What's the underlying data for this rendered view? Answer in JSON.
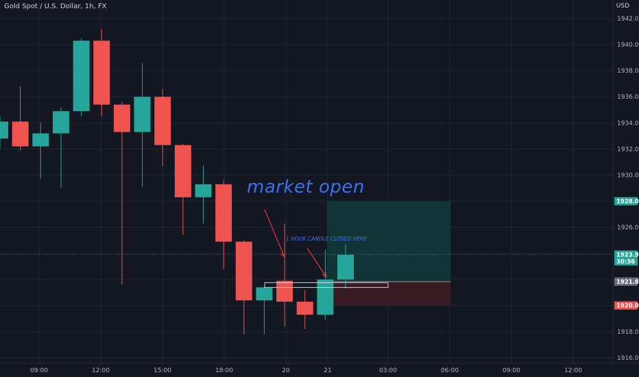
{
  "header": {
    "title": "Gold Spot / U.S. Dollar, 1h, FX",
    "currency": "USD"
  },
  "annotations": {
    "market_open": "market open",
    "candle_note": "1 HOUR CANDLE CLOSED HERE"
  },
  "colors": {
    "background": "#131722",
    "grid": "#1f2433",
    "up": "#26a69a",
    "down": "#ef5350",
    "annotation": "#3d6ff5",
    "arrow": "#e53935",
    "target_zone": "#123b3b",
    "stop_zone": "#3d1c22"
  },
  "chart_data": {
    "type": "candlestick",
    "title": "Gold Spot / U.S. Dollar, 1h, FX",
    "ylim": [
      1915.5,
      1943
    ],
    "y_ticks": [
      "1916.00",
      "1918.00",
      "1920.00",
      "1922.00",
      "1924.00",
      "1926.00",
      "1928.00",
      "1930.00",
      "1932.00",
      "1934.00",
      "1936.00",
      "1938.00",
      "1940.00",
      "1942.00"
    ],
    "x_tick_labels": [
      "09:00",
      "12:00",
      "15:00",
      "18:00",
      "20",
      "21",
      "03:00",
      "06:00",
      "09:00",
      "12:00"
    ],
    "candles": [
      {
        "o": 1932.8,
        "h": 1934.5,
        "l": 1932.0,
        "c": 1934.1
      },
      {
        "o": 1934.1,
        "h": 1936.8,
        "l": 1931.9,
        "c": 1932.2
      },
      {
        "o": 1932.2,
        "h": 1934.0,
        "l": 1929.7,
        "c": 1933.2
      },
      {
        "o": 1933.2,
        "h": 1935.2,
        "l": 1929.0,
        "c": 1934.9
      },
      {
        "o": 1934.9,
        "h": 1940.5,
        "l": 1934.5,
        "c": 1940.3
      },
      {
        "o": 1940.3,
        "h": 1941.2,
        "l": 1934.5,
        "c": 1935.4
      },
      {
        "o": 1935.4,
        "h": 1935.6,
        "l": 1921.6,
        "c": 1933.3
      },
      {
        "o": 1933.3,
        "h": 1938.6,
        "l": 1929.1,
        "c": 1936.0
      },
      {
        "o": 1936.0,
        "h": 1936.6,
        "l": 1930.7,
        "c": 1932.3
      },
      {
        "o": 1932.3,
        "h": 1932.4,
        "l": 1925.4,
        "c": 1928.3
      },
      {
        "o": 1928.3,
        "h": 1930.7,
        "l": 1926.3,
        "c": 1929.3
      },
      {
        "o": 1929.3,
        "h": 1929.6,
        "l": 1922.8,
        "c": 1924.9
      },
      {
        "o": 1924.9,
        "h": 1925.0,
        "l": 1917.8,
        "c": 1920.4
      },
      {
        "o": 1920.4,
        "h": 1921.4,
        "l": 1917.8,
        "c": 1921.4
      },
      {
        "o": 1921.9,
        "h": 1926.3,
        "l": 1918.4,
        "c": 1920.3
      },
      {
        "o": 1920.3,
        "h": 1921.2,
        "l": 1918.2,
        "c": 1919.3
      },
      {
        "o": 1919.3,
        "h": 1924.3,
        "l": 1918.9,
        "c": 1922.0
      },
      {
        "o": 1922.0,
        "h": 1924.7,
        "l": 1921.3,
        "c": 1923.9
      }
    ],
    "levels": {
      "target": {
        "value": 1928.0,
        "label": "1928.00"
      },
      "current": {
        "value": 1923.91,
        "label": "1923.91",
        "countdown": "30:36"
      },
      "entry": {
        "value": 1921.84,
        "label": "1921.84"
      },
      "stop": {
        "value": 1920.01,
        "label": "1920.01"
      }
    }
  }
}
